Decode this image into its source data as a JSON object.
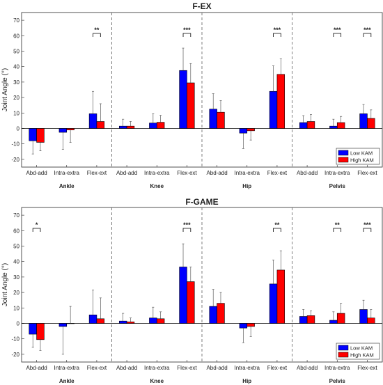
{
  "chart_data": [
    {
      "type": "bar",
      "title": "F-EX",
      "ylabel": "Joint Angle (°)",
      "ylim": [
        -25,
        75
      ],
      "yticks": [
        -20,
        -10,
        0,
        10,
        20,
        30,
        40,
        50,
        60,
        70
      ],
      "groups": [
        "Ankle",
        "Knee",
        "Hip",
        "Pelvis"
      ],
      "categories": [
        "Abd-add",
        "Intra-extra",
        "Flex-ext",
        "Abd-add",
        "Intra-extra",
        "Flex-ext",
        "Abd-add",
        "Intra-extra",
        "Flex-ext",
        "Abd-add",
        "Intra-extra",
        "Flex-ext"
      ],
      "series": [
        {
          "name": "Low KAM",
          "color": "#0000ff",
          "values": [
            -8,
            -2.5,
            9.5,
            1.5,
            3.5,
            37.5,
            12.5,
            -3,
            24,
            3.8,
            1.5,
            9.5
          ],
          "sd": [
            8.5,
            11,
            14.5,
            4.5,
            6,
            14.5,
            10,
            10,
            16.5,
            4.5,
            4.5,
            6
          ]
        },
        {
          "name": "High KAM",
          "color": "#ff0000",
          "values": [
            -9,
            -1,
            4.5,
            1.5,
            4,
            29.5,
            10.5,
            -1.5,
            35,
            4.5,
            3.8,
            6.5
          ],
          "sd": [
            5.5,
            8,
            11.5,
            3,
            4.5,
            12.5,
            7.5,
            6,
            10,
            4.5,
            4,
            5.5
          ]
        }
      ],
      "significance": [
        {
          "category_index": 2,
          "label": "**"
        },
        {
          "category_index": 5,
          "label": "***"
        },
        {
          "category_index": 8,
          "label": "***"
        },
        {
          "category_index": 10,
          "label": "***"
        },
        {
          "category_index": 11,
          "label": "***"
        }
      ],
      "legend_position": "bottom-right",
      "grid": false
    },
    {
      "type": "bar",
      "title": "F-GAME",
      "ylabel": "Joint Angle (°)",
      "ylim": [
        -25,
        75
      ],
      "yticks": [
        -20,
        -10,
        0,
        10,
        20,
        30,
        40,
        50,
        60,
        70
      ],
      "groups": [
        "Ankle",
        "Knee",
        "Hip",
        "Pelvis"
      ],
      "categories": [
        "Abd-add",
        "Intra-extra",
        "Flex-ext",
        "Abd-add",
        "Intra-extra",
        "Flex-ext",
        "Abd-add",
        "Intra-extra",
        "Flex-ext",
        "Abd-add",
        "Intra-extra",
        "Flex-ext"
      ],
      "series": [
        {
          "name": "Low KAM",
          "color": "#0000ff",
          "values": [
            -7,
            -2,
            5.5,
            1.5,
            3.5,
            36.5,
            11,
            -3,
            25.5,
            4.5,
            2,
            9
          ],
          "sd": [
            8.5,
            18,
            16,
            5,
            7,
            15,
            11,
            9.5,
            15.5,
            4.5,
            5.5,
            6
          ]
        },
        {
          "name": "High KAM",
          "color": "#ff0000",
          "values": [
            -10.5,
            0,
            3,
            1,
            3,
            27,
            13,
            -2,
            34.5,
            5,
            6.5,
            3.5
          ],
          "sd": [
            7,
            11,
            13.5,
            2.5,
            4.5,
            9.5,
            7,
            6.5,
            12.5,
            3,
            6.5,
            5.5
          ]
        }
      ],
      "significance": [
        {
          "category_index": 0,
          "label": "*"
        },
        {
          "category_index": 5,
          "label": "***"
        },
        {
          "category_index": 8,
          "label": "**"
        },
        {
          "category_index": 10,
          "label": "**"
        },
        {
          "category_index": 11,
          "label": "***"
        }
      ],
      "legend_position": "bottom-right",
      "grid": false
    }
  ]
}
